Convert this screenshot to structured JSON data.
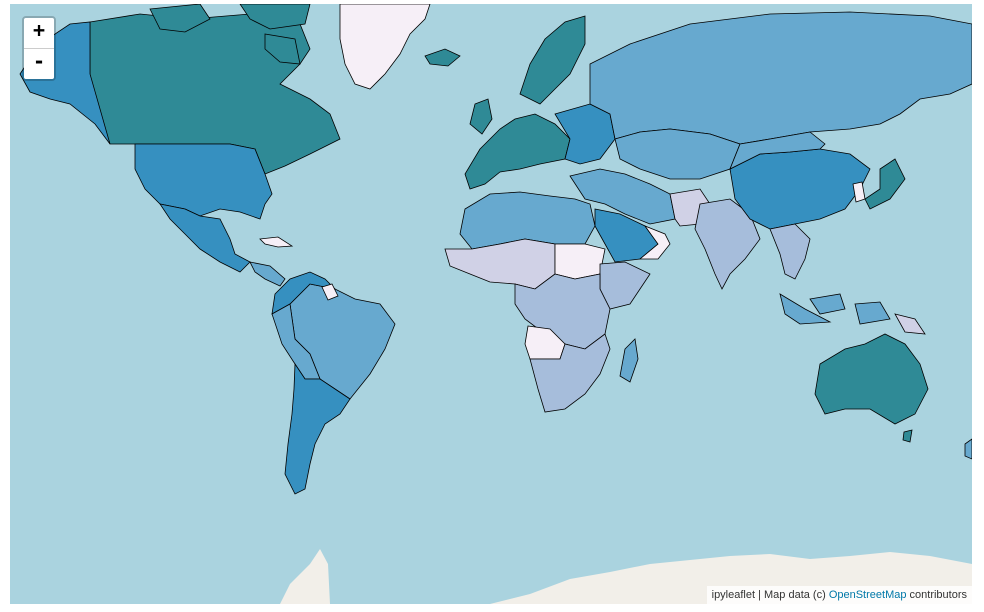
{
  "colors": {
    "ocean": "#aad3df",
    "land_base": "#f2efe9",
    "scale": [
      "#f6eff7",
      "#d0d1e6",
      "#a6bddb",
      "#67a9cf",
      "#3690c0",
      "#2f8a96"
    ],
    "border": "#000000"
  },
  "zoom": {
    "in_label": "+",
    "out_label": "-"
  },
  "attribution": {
    "prefix": "ipyleaflet | Map data (c) ",
    "link_text": "OpenStreetMap",
    "suffix": " contributors"
  }
}
